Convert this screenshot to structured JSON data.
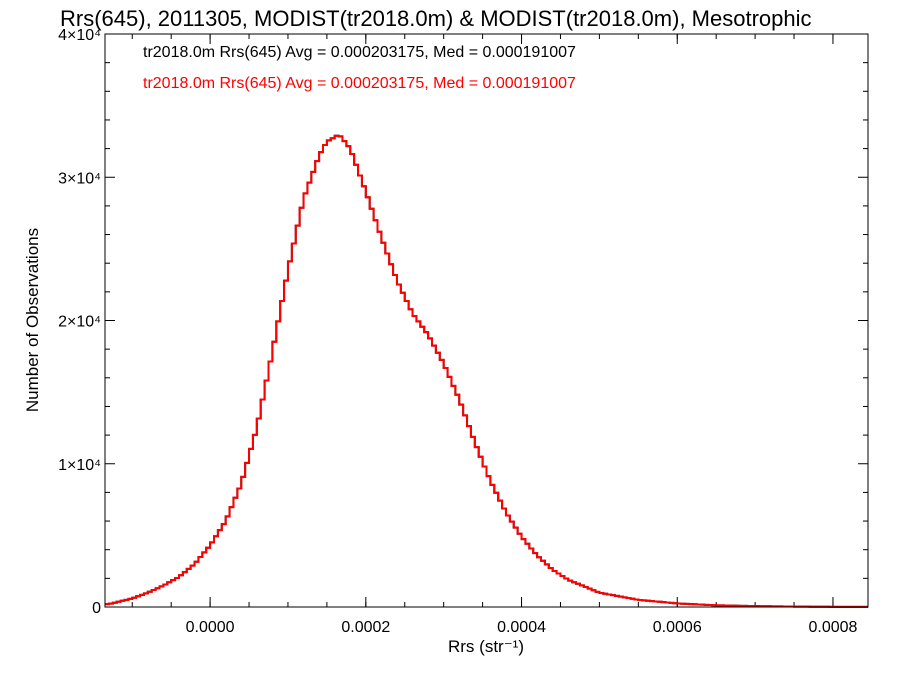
{
  "chart_data": {
    "type": "line",
    "step": true,
    "title": "Rrs(645), 2011305, MODIST(tr2018.0m) & MODIST(tr2018.0m), Mesotrophic",
    "xlabel": "Rrs (str⁻¹)",
    "ylabel": "Number of Observations",
    "xlim": [
      -0.000135,
      0.000845
    ],
    "ylim": [
      0,
      40000
    ],
    "x_ticks": [
      0.0,
      0.0002,
      0.0004,
      0.0006,
      0.0008
    ],
    "x_tick_labels": [
      "0.0000",
      "0.0002",
      "0.0004",
      "0.0006",
      "0.0008"
    ],
    "y_ticks": [
      0,
      10000,
      20000,
      30000,
      40000
    ],
    "y_tick_labels": [
      "0",
      "1×10⁴",
      "2×10⁴",
      "3×10⁴",
      "4×10⁴"
    ],
    "legend": {
      "placement": "top-left",
      "entries": [
        {
          "text": "tr2018.0m Rrs(645) Avg = 0.000203175, Med = 0.000191007",
          "color": "#000000"
        },
        {
          "text": "tr2018.0m Rrs(645) Avg = 0.000203175, Med = 0.000191007",
          "color": "#ff0000"
        }
      ]
    },
    "series": [
      {
        "color": "#000000",
        "x": [
          -0.00013,
          -0.0001,
          -8e-05,
          -6e-05,
          -4e-05,
          -2e-05,
          0.0,
          2e-05,
          4e-05,
          6e-05,
          8e-05,
          0.0001,
          0.00012,
          0.00014,
          0.00015,
          0.00016,
          0.000165,
          0.00017,
          0.00018,
          0.0002,
          0.00022,
          0.00024,
          0.00026,
          0.00028,
          0.0003,
          0.00032,
          0.00034,
          0.00036,
          0.00038,
          0.0004,
          0.00042,
          0.00044,
          0.00046,
          0.0005,
          0.00055,
          0.0006,
          0.00065,
          0.0007,
          0.00075,
          0.0008,
          0.00084
        ],
        "y": [
          200,
          600,
          1000,
          1500,
          2100,
          3000,
          4300,
          6000,
          8600,
          12500,
          17800,
          23500,
          28500,
          31500,
          32500,
          32800,
          33000,
          32700,
          32000,
          29000,
          25800,
          22800,
          20500,
          19000,
          17000,
          14500,
          11500,
          8800,
          6600,
          4900,
          3600,
          2600,
          1900,
          1000,
          500,
          250,
          120,
          60,
          30,
          10,
          5
        ]
      },
      {
        "color": "#ff0000",
        "x": [
          -0.00013,
          -0.0001,
          -8e-05,
          -6e-05,
          -4e-05,
          -2e-05,
          0.0,
          2e-05,
          4e-05,
          6e-05,
          8e-05,
          0.0001,
          0.00012,
          0.00014,
          0.00015,
          0.00016,
          0.000165,
          0.00017,
          0.00018,
          0.0002,
          0.00022,
          0.00024,
          0.00026,
          0.00028,
          0.0003,
          0.00032,
          0.00034,
          0.00036,
          0.00038,
          0.0004,
          0.00042,
          0.00044,
          0.00046,
          0.0005,
          0.00055,
          0.0006,
          0.00065,
          0.0007,
          0.00075,
          0.0008,
          0.00084
        ],
        "y": [
          200,
          600,
          1000,
          1500,
          2100,
          3000,
          4300,
          6000,
          8600,
          12500,
          17800,
          23500,
          28500,
          31500,
          32500,
          32800,
          33000,
          32700,
          32000,
          29000,
          25800,
          22800,
          20500,
          19000,
          17000,
          14500,
          11500,
          8800,
          6600,
          4900,
          3600,
          2600,
          1900,
          1000,
          500,
          250,
          120,
          60,
          30,
          10,
          5
        ]
      }
    ]
  }
}
